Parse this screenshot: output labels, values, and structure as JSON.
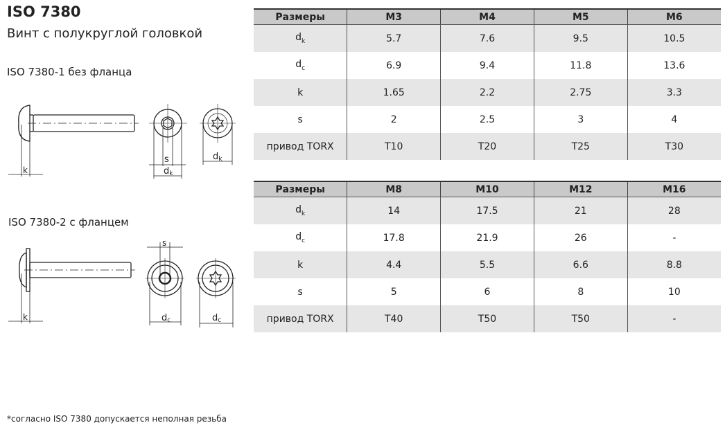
{
  "title": "ISO 7380",
  "subtitle": "Винт с полукруглой головкой",
  "variant1_label": "ISO 7380-1 без фланца",
  "variant2_label": "ISO 7380-2 с фланцем",
  "drawing_labels": {
    "k": "k",
    "s": "s",
    "d": "d",
    "k_sub": "k",
    "c_sub": "c"
  },
  "footnote": "*согласно ISO 7380 допускается неполная резьба",
  "table1": {
    "headers": [
      "Размеры",
      "M3",
      "M4",
      "M5",
      "M6"
    ],
    "rows": [
      {
        "label": "d",
        "sub": "k",
        "values": [
          "5.7",
          "7.6",
          "9.5",
          "10.5"
        ]
      },
      {
        "label": "d",
        "sub": "c",
        "values": [
          "6.9",
          "9.4",
          "11.8",
          "13.6"
        ]
      },
      {
        "label": "k",
        "sub": "",
        "values": [
          "1.65",
          "2.2",
          "2.75",
          "3.3"
        ]
      },
      {
        "label": "s",
        "sub": "",
        "values": [
          "2",
          "2.5",
          "3",
          "4"
        ]
      },
      {
        "label": "привод TORX",
        "sub": "",
        "values": [
          "T10",
          "T20",
          "T25",
          "T30"
        ]
      }
    ]
  },
  "table2": {
    "headers": [
      "Размеры",
      "M8",
      "M10",
      "M12",
      "M16"
    ],
    "rows": [
      {
        "label": "d",
        "sub": "k",
        "values": [
          "14",
          "17.5",
          "21",
          "28"
        ]
      },
      {
        "label": "d",
        "sub": "c",
        "values": [
          "17.8",
          "21.9",
          "26",
          "-"
        ]
      },
      {
        "label": "k",
        "sub": "",
        "values": [
          "4.4",
          "5.5",
          "6.6",
          "8.8"
        ]
      },
      {
        "label": "s",
        "sub": "",
        "values": [
          "5",
          "6",
          "8",
          "10"
        ]
      },
      {
        "label": "привод TORX",
        "sub": "",
        "values": [
          "T40",
          "T50",
          "T50",
          "-"
        ]
      }
    ]
  }
}
